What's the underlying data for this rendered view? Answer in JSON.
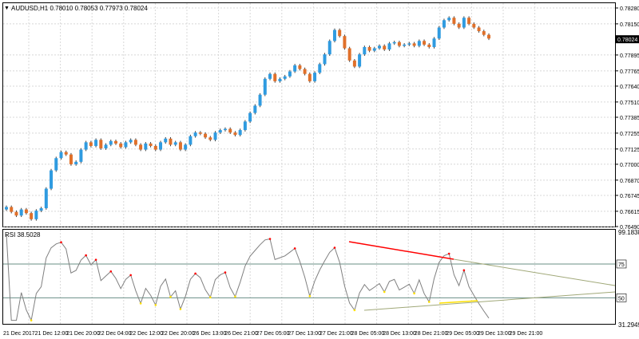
{
  "header": {
    "title": "AUDUSD,H1  0.78010 0.78053 0.77973 0.78024"
  },
  "price_panel": {
    "axis_labels": [
      "0.78280",
      "0.78150",
      "0.78024",
      "0.77895",
      "0.77765",
      "0.77640",
      "0.77510",
      "0.77385",
      "0.77255",
      "0.77125",
      "0.77000",
      "0.76870",
      "0.76745",
      "0.76615",
      "0.76490"
    ],
    "axis_values": [
      0.7828,
      0.7815,
      0.78024,
      0.77895,
      0.77765,
      0.7764,
      0.7751,
      0.77385,
      0.77255,
      0.77125,
      0.77,
      0.7687,
      0.76745,
      0.76615,
      0.7649
    ],
    "current_price_label": "0.78024",
    "current_price": 0.78024
  },
  "rsi_panel": {
    "title": "RSI 38.5028",
    "max_label": "99.1838",
    "min_label": "31.2949",
    "level_75": "75",
    "level_50": "50"
  },
  "time_axis": {
    "labels": [
      "21 Dec 2017",
      "21 Dec 12:00",
      "21 Dec 20:00",
      "22 Dec 04:00",
      "22 Dec 12:00",
      "22 Dec 20:00",
      "26 Dec 13:00",
      "26 Dec 21:00",
      "27 Dec 05:00",
      "27 Dec 13:00",
      "27 Dec 21:00",
      "28 Dec 05:00",
      "28 Dec 13:00",
      "28 Dec 21:00",
      "29 Dec 05:00",
      "29 Dec 13:00",
      "29 Dec 21:00"
    ]
  },
  "colors": {
    "bull": "#2f9be0",
    "bear": "#e0702a",
    "rsi_line": "#808080",
    "trend_red": "#ff0000",
    "trend_olive": "#a0a878",
    "trend_yellow": "#ffe000",
    "level_line": "#6a8f86",
    "grid": "#d8d8d8"
  },
  "chart_data": {
    "type": "candlestick",
    "symbol": "AUDUSD",
    "timeframe": "H1",
    "ohlc": [
      0.7665,
      0.7661,
      0.7658,
      0.7663,
      0.766,
      0.7655,
      0.7662,
      0.7664,
      0.768,
      0.7695,
      0.7705,
      0.771,
      0.7708,
      0.77,
      0.7702,
      0.7712,
      0.7718,
      0.7715,
      0.772,
      0.7713,
      0.7716,
      0.7719,
      0.7717,
      0.7714,
      0.7718,
      0.772,
      0.7716,
      0.7712,
      0.7717,
      0.7715,
      0.7712,
      0.7718,
      0.7721,
      0.7716,
      0.7718,
      0.7712,
      0.7716,
      0.7723,
      0.7726,
      0.7725,
      0.7722,
      0.772,
      0.7726,
      0.7728,
      0.7729,
      0.7726,
      0.7724,
      0.7728,
      0.7735,
      0.7742,
      0.7748,
      0.7757,
      0.777,
      0.7774,
      0.7768,
      0.777,
      0.7772,
      0.7776,
      0.7781,
      0.7778,
      0.7774,
      0.7768,
      0.7775,
      0.7782,
      0.779,
      0.7801,
      0.781,
      0.7805,
      0.7795,
      0.7785,
      0.778,
      0.779,
      0.7796,
      0.7793,
      0.7795,
      0.7797,
      0.7794,
      0.7799,
      0.78,
      0.7797,
      0.7798,
      0.7799,
      0.7797,
      0.7801,
      0.7798,
      0.7796,
      0.7803,
      0.7812,
      0.7818,
      0.782,
      0.7815,
      0.7812,
      0.782,
      0.7815,
      0.7812,
      0.7809,
      0.7806,
      0.7803
    ],
    "rsi": {
      "name": "RSI",
      "current": 38.5028,
      "levels": [
        75,
        50
      ],
      "range": [
        31.2949,
        99.1838
      ]
    }
  }
}
